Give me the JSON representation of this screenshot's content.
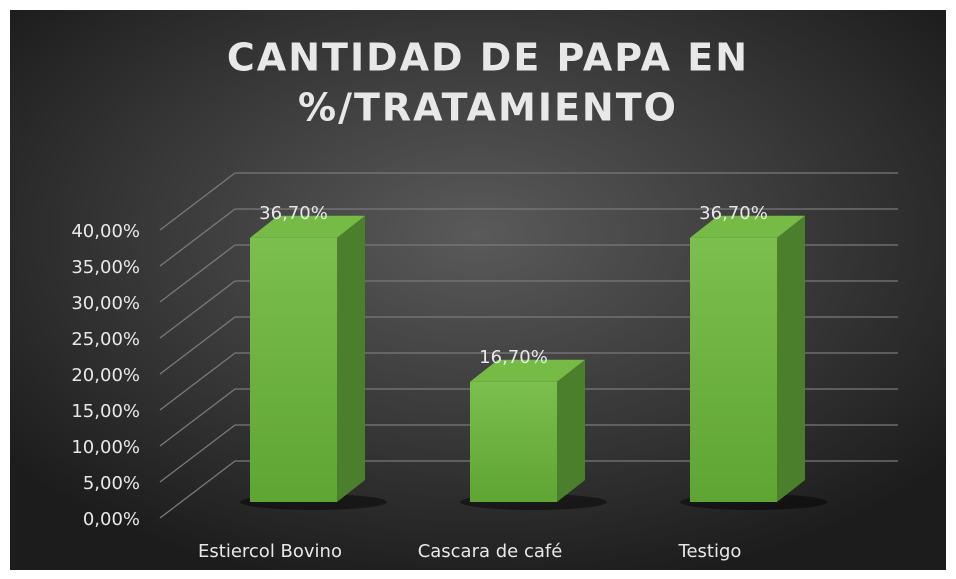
{
  "chart_data": {
    "type": "bar3d",
    "title": [
      "CANTIDAD DE PAPA EN",
      "%/TRATAMIENTO"
    ],
    "categories": [
      "Estiercol Bovino",
      "Cascara de café",
      "Testigo"
    ],
    "values": [
      36.7,
      16.7,
      36.7
    ],
    "value_labels": [
      "36,70%",
      "16,70%",
      "36,70%"
    ],
    "color": "#6cb33c",
    "ylim": [
      0,
      40
    ],
    "yticks": [
      {
        "value": 0,
        "label": "0,00%"
      },
      {
        "value": 5,
        "label": "5,00%"
      },
      {
        "value": 10,
        "label": "10,00%"
      },
      {
        "value": 15,
        "label": "15,00%"
      },
      {
        "value": 20,
        "label": "20,00%"
      },
      {
        "value": 25,
        "label": "25,00%"
      },
      {
        "value": 30,
        "label": "30,00%"
      },
      {
        "value": 35,
        "label": "35,00%"
      },
      {
        "value": 40,
        "label": "40,00%"
      }
    ],
    "grid": true
  }
}
